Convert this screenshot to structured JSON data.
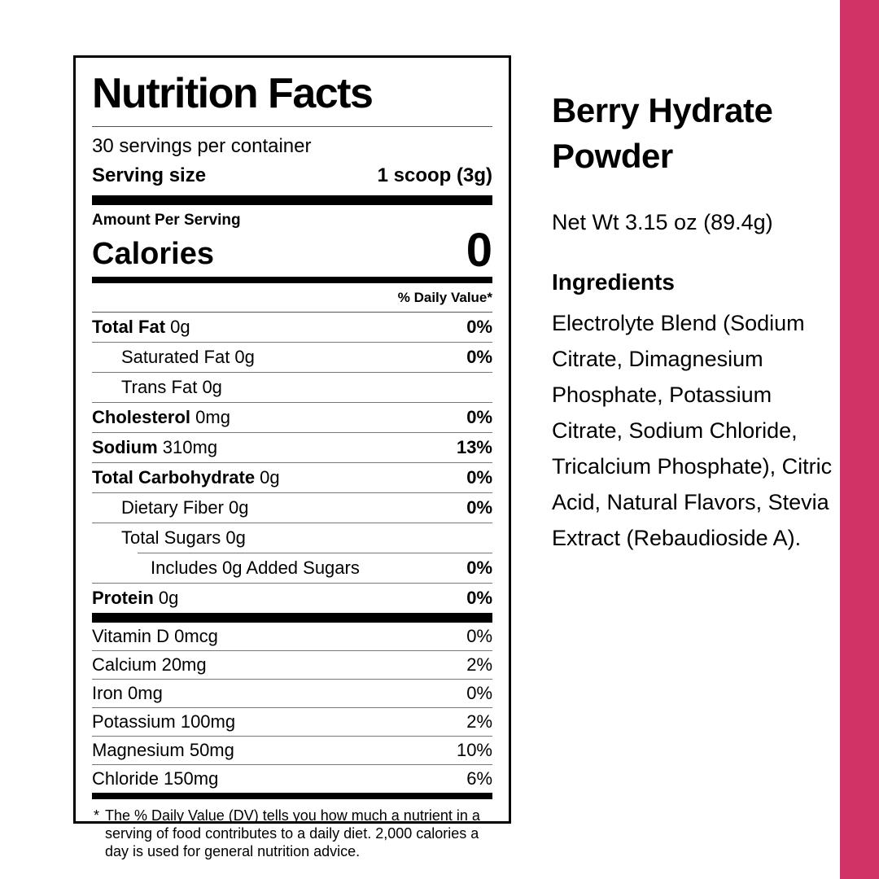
{
  "accent_color": "#d23366",
  "label": {
    "title": "Nutrition Facts",
    "servings_per_container": "30 servings per container",
    "serving_size_label": "Serving size",
    "serving_size_value": "1 scoop (3g)",
    "amount_per_serving": "Amount Per Serving",
    "calories_label": "Calories",
    "calories_value": "0",
    "daily_value_header": "% Daily Value*",
    "rows": [
      {
        "name": "Total Fat",
        "amount": "0g",
        "dv": "0%",
        "bold": true,
        "indent": 0
      },
      {
        "name": "Saturated Fat",
        "amount": "0g",
        "dv": "0%",
        "bold": false,
        "indent": 1
      },
      {
        "name": "Trans Fat",
        "amount": "0g",
        "dv": "",
        "bold": false,
        "indent": 1
      },
      {
        "name": "Cholesterol",
        "amount": "0mg",
        "dv": "0%",
        "bold": true,
        "indent": 0
      },
      {
        "name": "Sodium",
        "amount": "310mg",
        "dv": "13%",
        "bold": true,
        "indent": 0
      },
      {
        "name": "Total Carbohydrate",
        "amount": "0g",
        "dv": "0%",
        "bold": true,
        "indent": 0
      },
      {
        "name": "Dietary Fiber",
        "amount": "0g",
        "dv": "0%",
        "bold": false,
        "indent": 1
      },
      {
        "name": "Total Sugars",
        "amount": "0g",
        "dv": "",
        "bold": false,
        "indent": 1
      },
      {
        "name": "Includes 0g Added Sugars",
        "amount": "",
        "dv": "0%",
        "bold": false,
        "indent": 2
      },
      {
        "name": "Protein",
        "amount": "0g",
        "dv": "0%",
        "bold": true,
        "indent": 0
      }
    ],
    "micronutrients": [
      {
        "name": "Vitamin D",
        "amount": "0mcg",
        "dv": "0%"
      },
      {
        "name": "Calcium",
        "amount": "20mg",
        "dv": "2%"
      },
      {
        "name": "Iron",
        "amount": "0mg",
        "dv": "0%"
      },
      {
        "name": "Potassium",
        "amount": "100mg",
        "dv": "2%"
      },
      {
        "name": "Magnesium",
        "amount": "50mg",
        "dv": "10%"
      },
      {
        "name": "Chloride",
        "amount": "150mg",
        "dv": "6%"
      }
    ],
    "footnote_marker": "*",
    "footnote": "The % Daily Value (DV) tells you how much a nutrient in a serving of food contributes to a daily diet. 2,000 calories a day is used for general nutrition advice."
  },
  "product": {
    "name": "Berry Hydrate Powder",
    "net_weight": "Net Wt 3.15 oz (89.4g)",
    "ingredients_heading": "Ingredients",
    "ingredients_text": "Electrolyte Blend (Sodium Citrate, Dimagnesium Phosphate, Potassium Citrate, Sodium Chloride, Tricalcium Phosphate), Citric Acid, Natural Flavors, Stevia Extract (Rebaudioside A)."
  }
}
